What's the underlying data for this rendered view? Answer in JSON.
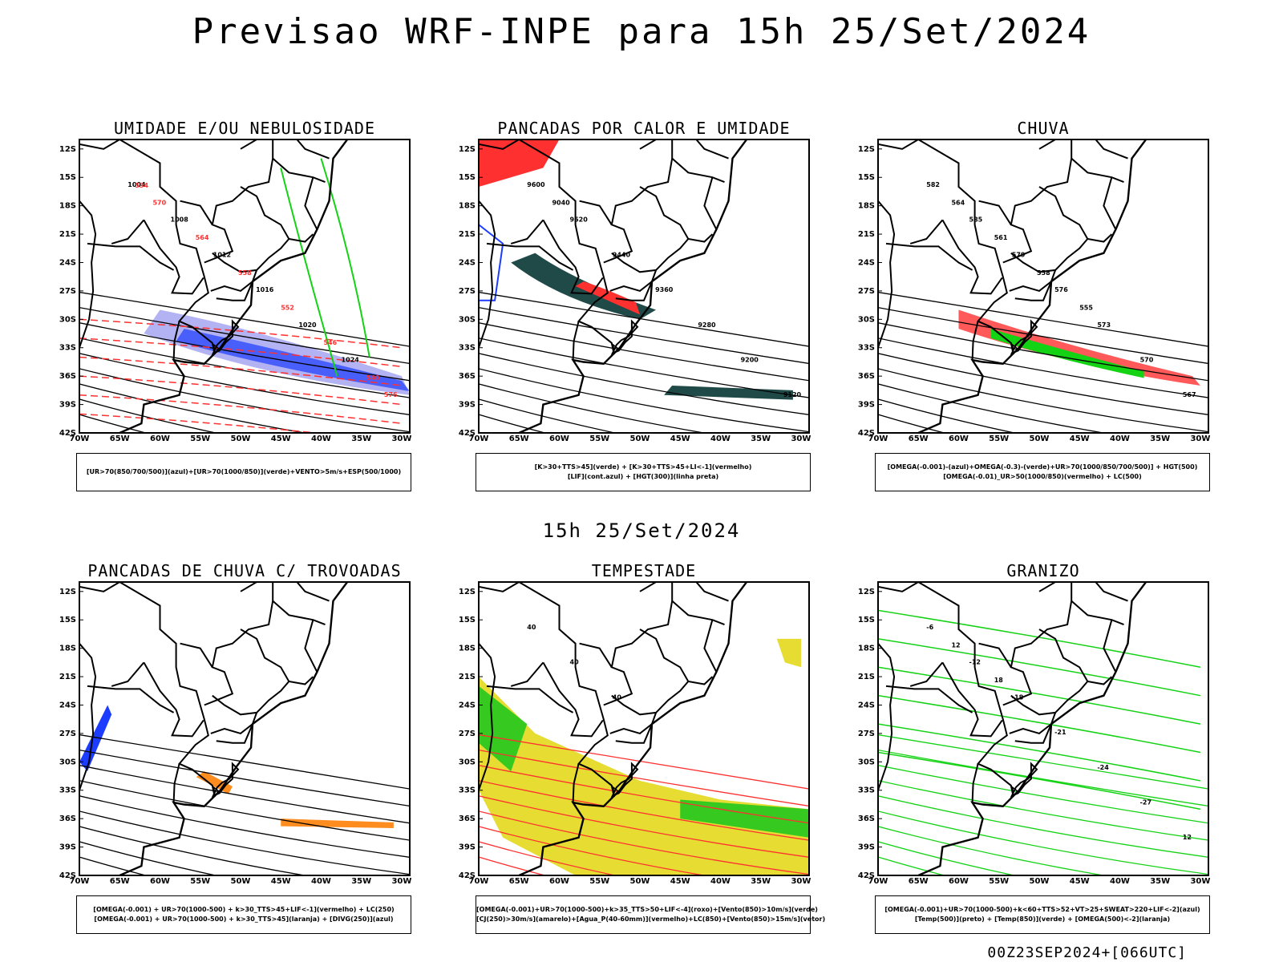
{
  "header": {
    "title": "Previsao WRF-INPE  para 15h 25/Set/2024"
  },
  "mid_title": "15h 25/Set/2024",
  "footer": "00Z23SEP2024+[066UTC]",
  "axes": {
    "lat_labels": [
      "12S",
      "15S",
      "18S",
      "21S",
      "24S",
      "27S",
      "30S",
      "33S",
      "36S",
      "39S",
      "42S"
    ],
    "lon_labels": [
      "70W",
      "65W",
      "60W",
      "55W",
      "50W",
      "45W",
      "40W",
      "35W",
      "30W"
    ]
  },
  "panels": [
    {
      "title": "UMIDADE E/OU NEBULOSIDADE",
      "legend": [
        "[UR>70(850/700/500)](azul)+[UR>70(1000/850)](verde)+VENTO>5m/s+ESP(500/1000)"
      ],
      "labels": [
        "1004",
        "1008",
        "1012",
        "1016",
        "1020",
        "1024",
        "576",
        "570",
        "564",
        "558",
        "552",
        "546",
        "540",
        "534"
      ]
    },
    {
      "title": "PANCADAS POR CALOR E UMIDADE",
      "legend": [
        "[K>30+TTS>45](verde) + [K>30+TTS>45+LI<-1](vermelho)",
        "[LIF](cont.azul) + [HGT(300)](linha preta)"
      ],
      "labels": [
        "9600",
        "9520",
        "9440",
        "9360",
        "9280",
        "9200",
        "9120",
        "9040"
      ]
    },
    {
      "title": "CHUVA",
      "legend": [
        "[OMEGA(-0.001)-(azul)+OMEGA(-0.3)-(verde)+UR>70(1000/850/700/500)] + HGT(500)",
        "[OMEGA(-0.01)_UR>50(1000/850)(vermelho) + LC(500)"
      ],
      "labels": [
        "582",
        "585",
        "579",
        "576",
        "573",
        "570",
        "567",
        "564",
        "561",
        "558",
        "555"
      ]
    },
    {
      "title": "PANCADAS DE CHUVA C/ TROVOADAS",
      "legend": [
        "[OMEGA(-0.001) + UR>70(1000-500) + k>30_TTS>45+LIF<-1](vermelho) + LC(250)",
        "[OMEGA(-0.001) + UR>70(1000-500) + k>30_TTS>45](laranja) + [DIVG(250)](azul)"
      ],
      "labels": []
    },
    {
      "title": "TEMPESTADE",
      "legend": [
        "[OMEGA(-0.001)+UR>70(1000-500)+k>35_TTS>50+LIF<-4](roxo)+[Vento(850)>10m/s](verde)",
        "[CJ(250)>30m/s](amarelo)+[Agua_P(40-60mm)](vermelho)+LC(850)+[Vento(850)>15m/s](vetor)"
      ],
      "labels": [
        "40",
        "40",
        "40"
      ]
    },
    {
      "title": "GRANIZO",
      "legend": [
        "[OMEGA(-0.001)+UR>70(1000-500)+k<60+TTS>52+VT>25+SWEAT>220+LIF<-2](azul)",
        "[Temp(500)](preto) + [Temp(850)](verde) + [OMEGA(500)<-2](laranja)"
      ],
      "labels": [
        "-6",
        "-12",
        "-18",
        "-21",
        "-24",
        "-27",
        "12",
        "12",
        "18"
      ]
    }
  ],
  "colors": {
    "red": "#ff3030",
    "green": "#14d214",
    "blue": "#1c3cff",
    "lightblue": "#a0a0f0",
    "darkteal": "#1f4a48",
    "yellow": "#e6dc32",
    "orange": "#ff8c1e"
  }
}
